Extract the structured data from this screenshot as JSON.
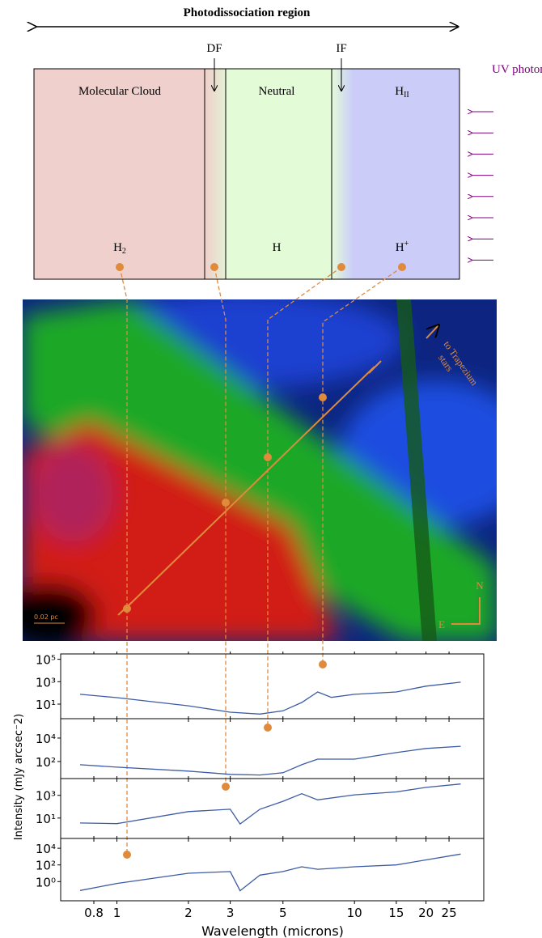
{
  "diagram": {
    "title": "Photodissociation region",
    "front_labels": [
      "DF",
      "IF"
    ],
    "uv_label": "UV photons",
    "regions": [
      "Molecular Cloud",
      "Neutral",
      {
        "base": "H",
        "sub": "II"
      }
    ],
    "species": [
      {
        "base": "H",
        "sub": "2"
      },
      {
        "base": "H"
      },
      {
        "base": "H",
        "sup": "+"
      }
    ],
    "image_labels": {
      "direction": [
        "to Trapezium",
        "stars"
      ],
      "scale": "0.02 pc",
      "north": "N",
      "east": "E"
    },
    "axis_labels": {
      "x": "Wavelength (microns)",
      "y": "Intensity (mJy arcsec⁻2)"
    }
  },
  "chart_data": [
    {
      "type": "line",
      "xscale": "log",
      "yscale": "log",
      "color": "#3b5ba5",
      "x": [
        0.7,
        1,
        2,
        3,
        4,
        5,
        6,
        7,
        8,
        10,
        15,
        20,
        28
      ],
      "values": [
        75,
        38,
        7,
        1.9,
        1.3,
        2.5,
        14,
        120,
        40,
        75,
        120,
        400,
        900
      ],
      "xlim": [
        0.58,
        35
      ],
      "ylim": [
        0.5,
        300000
      ],
      "yticks": [
        {
          "value": 10,
          "label": "10¹"
        },
        {
          "value": 1000,
          "label": "10³"
        },
        {
          "value": 100000,
          "label": "10⁵"
        }
      ]
    },
    {
      "type": "line",
      "xscale": "log",
      "yscale": "log",
      "color": "#3b5ba5",
      "x": [
        0.7,
        1,
        2,
        3,
        4,
        5,
        6,
        7,
        10,
        15,
        20,
        28
      ],
      "values": [
        53,
        33,
        15,
        8,
        7,
        11,
        53,
        160,
        160,
        580,
        1300,
        2000
      ],
      "xlim": [
        0.58,
        35
      ],
      "ylim": [
        3.5,
        450000
      ],
      "yticks": [
        {
          "value": 100,
          "label": "10²"
        },
        {
          "value": 10000,
          "label": "10⁴"
        }
      ]
    },
    {
      "type": "line",
      "xscale": "log",
      "yscale": "log",
      "color": "#3b5ba5",
      "x": [
        0.7,
        1,
        2,
        3,
        3.3,
        4,
        5,
        6,
        7,
        10,
        15,
        20,
        28
      ],
      "values": [
        3.7,
        3.2,
        37,
        60,
        3,
        60,
        300,
        1400,
        400,
        1100,
        2000,
        5000,
        10000
      ],
      "xlim": [
        0.58,
        35
      ],
      "ylim": [
        0.16,
        30000
      ],
      "yticks": [
        {
          "value": 10,
          "label": "10¹"
        },
        {
          "value": 1000,
          "label": "10³"
        }
      ]
    },
    {
      "type": "line",
      "xscale": "log",
      "yscale": "log",
      "color": "#3b5ba5",
      "x": [
        0.7,
        1,
        2,
        3,
        3.3,
        4,
        5,
        6,
        7,
        10,
        15,
        20,
        28
      ],
      "values": [
        0.085,
        0.6,
        10,
        16,
        0.08,
        6,
        16,
        60,
        30,
        60,
        100,
        400,
        2000
      ],
      "xlim": [
        0.58,
        35
      ],
      "ylim": [
        0.005,
        150000
      ],
      "yticks": [
        {
          "value": 1,
          "label": "10⁰"
        },
        {
          "value": 100,
          "label": "10²"
        },
        {
          "value": 10000,
          "label": "10⁴"
        }
      ],
      "xticks": [
        0.8,
        1,
        2,
        3,
        5,
        10,
        15,
        20,
        25
      ]
    }
  ]
}
